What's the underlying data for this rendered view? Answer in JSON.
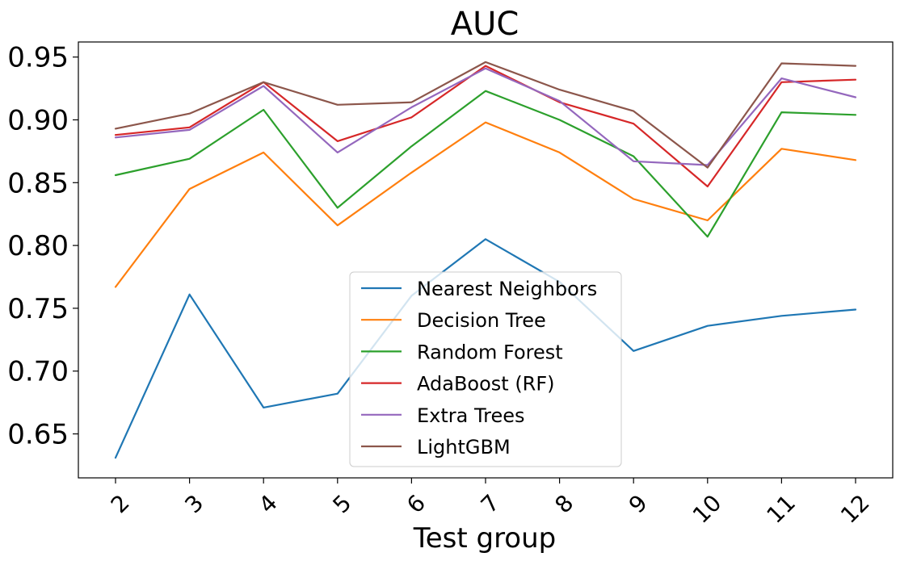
{
  "chart_data": {
    "type": "line",
    "title": "AUC",
    "xlabel": "Test group",
    "ylabel": "",
    "categories": [
      "2",
      "3",
      "4",
      "5",
      "6",
      "7",
      "8",
      "9",
      "10",
      "11",
      "12"
    ],
    "ylim": [
      0.615,
      0.962
    ],
    "yticks": [
      "0.65",
      "0.70",
      "0.75",
      "0.80",
      "0.85",
      "0.90",
      "0.95"
    ],
    "ytick_values": [
      0.65,
      0.7,
      0.75,
      0.8,
      0.85,
      0.9,
      0.95
    ],
    "grid": false,
    "legend_position": "lower center",
    "series": [
      {
        "name": "Nearest Neighbors",
        "color": "#1f77b4",
        "values": [
          0.631,
          0.761,
          0.671,
          0.682,
          0.76,
          0.805,
          0.771,
          0.716,
          0.736,
          0.744,
          0.749
        ]
      },
      {
        "name": "Decision Tree",
        "color": "#ff7f0e",
        "values": [
          0.767,
          0.845,
          0.874,
          0.816,
          0.858,
          0.898,
          0.874,
          0.837,
          0.82,
          0.877,
          0.868
        ]
      },
      {
        "name": "Random Forest",
        "color": "#2ca02c",
        "values": [
          0.856,
          0.869,
          0.908,
          0.83,
          0.879,
          0.923,
          0.9,
          0.871,
          0.807,
          0.906,
          0.904
        ]
      },
      {
        "name": "AdaBoost (RF)",
        "color": "#d62728",
        "values": [
          0.888,
          0.894,
          0.93,
          0.883,
          0.902,
          0.943,
          0.914,
          0.897,
          0.847,
          0.93,
          0.932
        ]
      },
      {
        "name": "Extra Trees",
        "color": "#9467bd",
        "values": [
          0.886,
          0.892,
          0.927,
          0.874,
          0.91,
          0.941,
          0.915,
          0.867,
          0.864,
          0.933,
          0.918
        ]
      },
      {
        "name": "LightGBM",
        "color": "#8c564b",
        "values": [
          0.893,
          0.905,
          0.93,
          0.912,
          0.914,
          0.946,
          0.924,
          0.907,
          0.862,
          0.945,
          0.943
        ]
      }
    ]
  }
}
